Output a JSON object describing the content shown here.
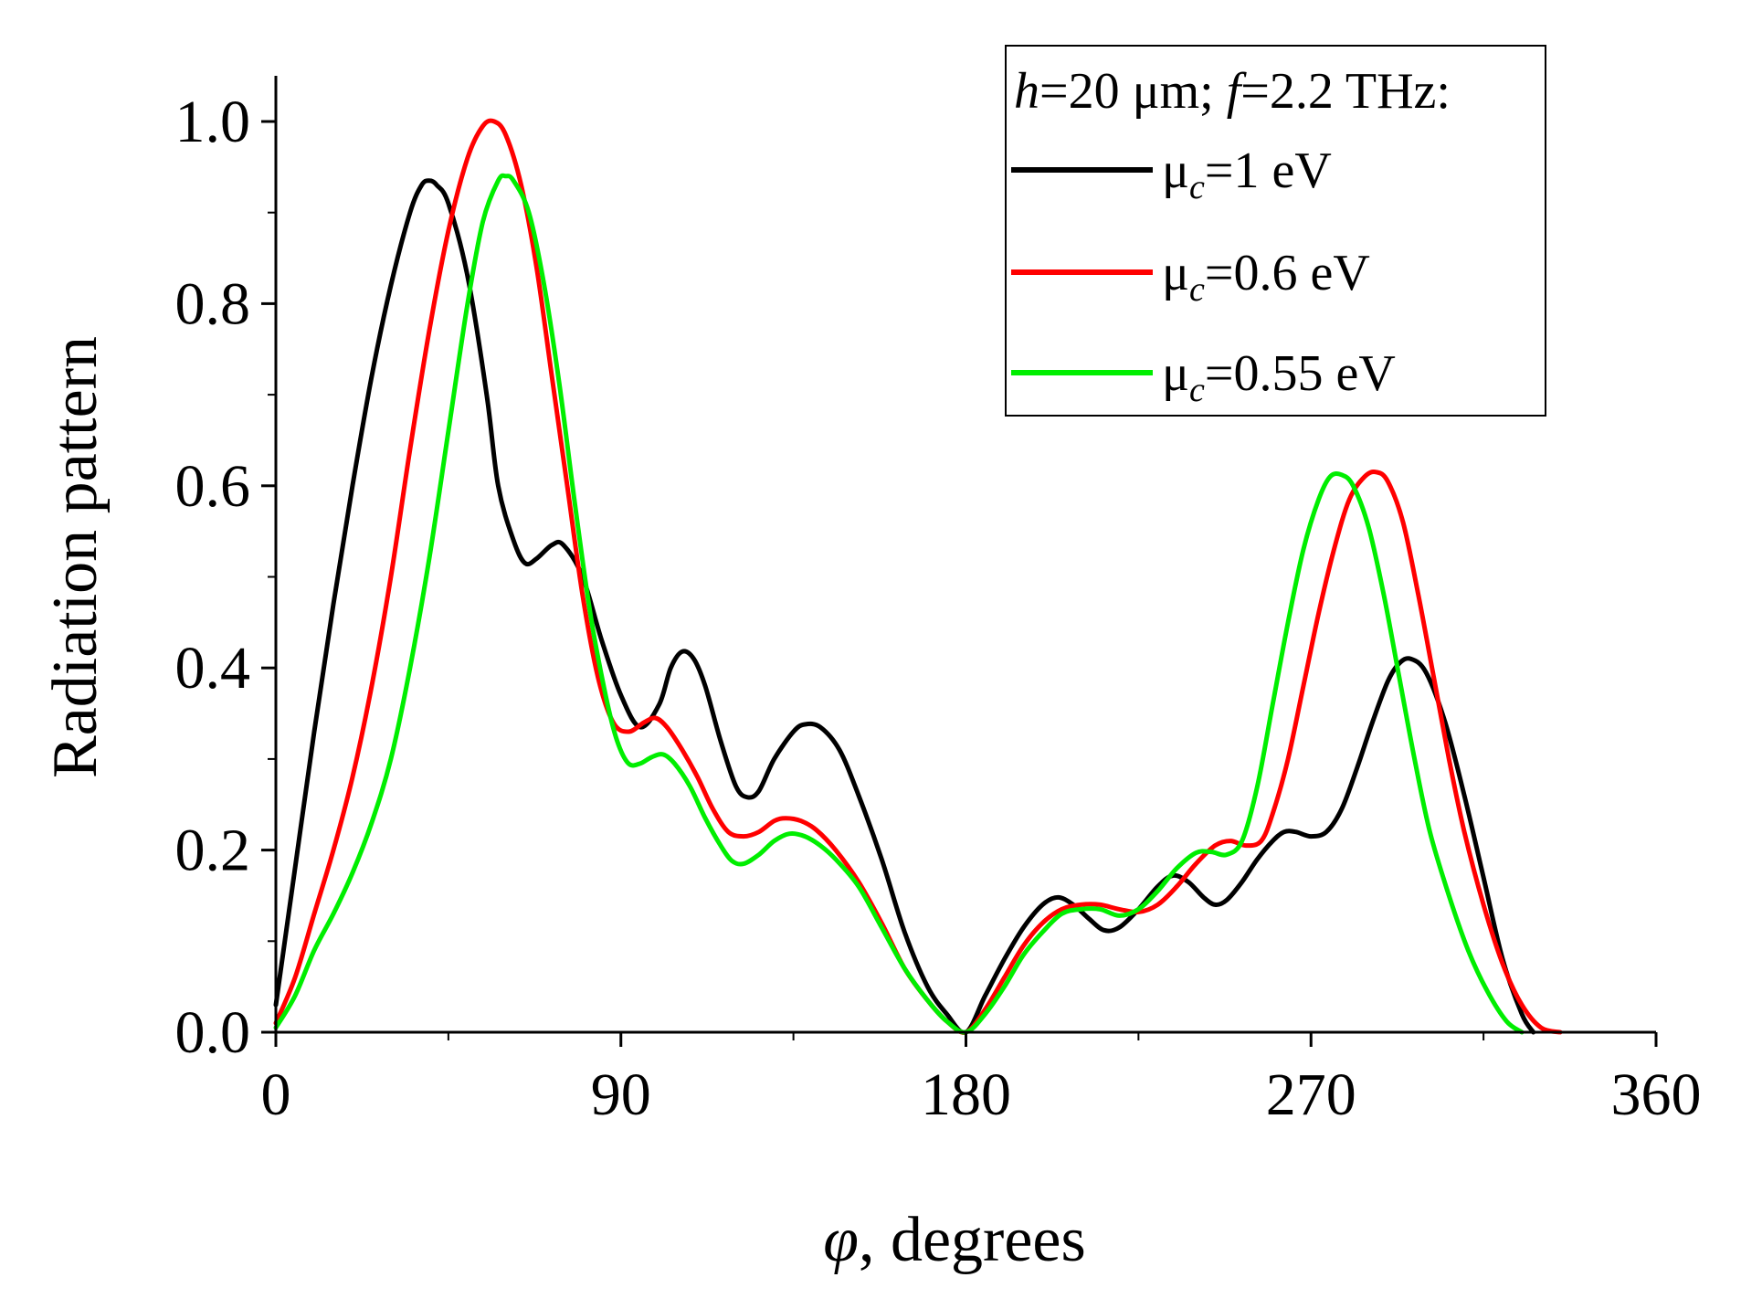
{
  "chart_data": {
    "type": "line",
    "title": "",
    "xlabel": {
      "symbol": "φ",
      "text": ", degrees"
    },
    "ylabel": "Radiation pattern",
    "xlim": [
      0,
      360
    ],
    "ylim": [
      0,
      1.0
    ],
    "xticks": [
      0,
      90,
      180,
      270,
      360
    ],
    "xtick_labels": [
      "0",
      "90",
      "180",
      "270",
      "360"
    ],
    "yticks": [
      0,
      0.2,
      0.4,
      0.6,
      0.8,
      1.0
    ],
    "ytick_labels": [
      "0.0",
      "0.2",
      "0.4",
      "0.6",
      "0.8",
      "1.0"
    ],
    "grid": false,
    "legend": {
      "placement": "top-right",
      "title": {
        "h_sym": "h",
        "h_val": "=20 μm; ",
        "f_sym": "f",
        "f_val": "=2.2 THz:"
      },
      "entry_prefix": "μ",
      "entry_sub": "c"
    },
    "series": [
      {
        "name": "μc=1 eV",
        "value_label": "=1 eV",
        "color": "#000000",
        "points": [
          [
            0,
            0.03
          ],
          [
            5,
            0.18
          ],
          [
            10,
            0.33
          ],
          [
            15,
            0.47
          ],
          [
            20,
            0.6
          ],
          [
            25,
            0.72
          ],
          [
            30,
            0.82
          ],
          [
            35,
            0.9
          ],
          [
            38,
            0.93
          ],
          [
            40,
            0.935
          ],
          [
            42,
            0.93
          ],
          [
            45,
            0.91
          ],
          [
            50,
            0.83
          ],
          [
            55,
            0.7
          ],
          [
            58,
            0.6
          ],
          [
            62,
            0.54
          ],
          [
            65,
            0.515
          ],
          [
            68,
            0.52
          ],
          [
            72,
            0.535
          ],
          [
            75,
            0.535
          ],
          [
            80,
            0.5
          ],
          [
            85,
            0.43
          ],
          [
            90,
            0.37
          ],
          [
            95,
            0.335
          ],
          [
            100,
            0.36
          ],
          [
            103,
            0.4
          ],
          [
            106,
            0.418
          ],
          [
            109,
            0.41
          ],
          [
            112,
            0.38
          ],
          [
            116,
            0.32
          ],
          [
            120,
            0.27
          ],
          [
            123,
            0.258
          ],
          [
            126,
            0.265
          ],
          [
            130,
            0.3
          ],
          [
            135,
            0.33
          ],
          [
            138,
            0.338
          ],
          [
            142,
            0.335
          ],
          [
            147,
            0.31
          ],
          [
            152,
            0.26
          ],
          [
            158,
            0.19
          ],
          [
            164,
            0.11
          ],
          [
            170,
            0.05
          ],
          [
            175,
            0.02
          ],
          [
            180,
            0.0
          ],
          [
            185,
            0.04
          ],
          [
            190,
            0.08
          ],
          [
            195,
            0.115
          ],
          [
            200,
            0.14
          ],
          [
            204,
            0.148
          ],
          [
            208,
            0.14
          ],
          [
            212,
            0.125
          ],
          [
            216,
            0.112
          ],
          [
            220,
            0.115
          ],
          [
            225,
            0.135
          ],
          [
            230,
            0.16
          ],
          [
            234,
            0.172
          ],
          [
            238,
            0.165
          ],
          [
            242,
            0.148
          ],
          [
            245,
            0.14
          ],
          [
            248,
            0.145
          ],
          [
            252,
            0.165
          ],
          [
            256,
            0.19
          ],
          [
            260,
            0.21
          ],
          [
            263,
            0.22
          ],
          [
            266,
            0.22
          ],
          [
            270,
            0.215
          ],
          [
            274,
            0.22
          ],
          [
            278,
            0.245
          ],
          [
            282,
            0.29
          ],
          [
            286,
            0.34
          ],
          [
            290,
            0.385
          ],
          [
            293,
            0.405
          ],
          [
            296,
            0.41
          ],
          [
            300,
            0.395
          ],
          [
            305,
            0.34
          ],
          [
            310,
            0.26
          ],
          [
            315,
            0.17
          ],
          [
            320,
            0.08
          ],
          [
            325,
            0.02
          ],
          [
            328,
            0.0
          ]
        ]
      },
      {
        "name": "μc=0.6 eV",
        "value_label": "=0.6 eV",
        "color": "#ff0000",
        "points": [
          [
            0,
            0.01
          ],
          [
            5,
            0.06
          ],
          [
            10,
            0.13
          ],
          [
            15,
            0.2
          ],
          [
            20,
            0.28
          ],
          [
            25,
            0.38
          ],
          [
            30,
            0.5
          ],
          [
            35,
            0.64
          ],
          [
            40,
            0.77
          ],
          [
            45,
            0.88
          ],
          [
            50,
            0.96
          ],
          [
            54,
            0.995
          ],
          [
            57,
            1.0
          ],
          [
            60,
            0.985
          ],
          [
            64,
            0.93
          ],
          [
            68,
            0.84
          ],
          [
            72,
            0.72
          ],
          [
            76,
            0.6
          ],
          [
            80,
            0.48
          ],
          [
            84,
            0.39
          ],
          [
            88,
            0.34
          ],
          [
            92,
            0.33
          ],
          [
            96,
            0.34
          ],
          [
            99,
            0.345
          ],
          [
            102,
            0.335
          ],
          [
            106,
            0.31
          ],
          [
            110,
            0.28
          ],
          [
            114,
            0.245
          ],
          [
            118,
            0.22
          ],
          [
            122,
            0.215
          ],
          [
            126,
            0.22
          ],
          [
            130,
            0.232
          ],
          [
            133,
            0.235
          ],
          [
            137,
            0.232
          ],
          [
            141,
            0.222
          ],
          [
            146,
            0.2
          ],
          [
            152,
            0.165
          ],
          [
            158,
            0.12
          ],
          [
            164,
            0.07
          ],
          [
            170,
            0.035
          ],
          [
            175,
            0.012
          ],
          [
            180,
            0.0
          ],
          [
            185,
            0.025
          ],
          [
            190,
            0.06
          ],
          [
            195,
            0.095
          ],
          [
            200,
            0.12
          ],
          [
            205,
            0.135
          ],
          [
            210,
            0.14
          ],
          [
            215,
            0.14
          ],
          [
            220,
            0.135
          ],
          [
            225,
            0.132
          ],
          [
            230,
            0.14
          ],
          [
            235,
            0.16
          ],
          [
            240,
            0.185
          ],
          [
            245,
            0.205
          ],
          [
            249,
            0.21
          ],
          [
            253,
            0.205
          ],
          [
            257,
            0.21
          ],
          [
            260,
            0.24
          ],
          [
            264,
            0.3
          ],
          [
            268,
            0.38
          ],
          [
            272,
            0.46
          ],
          [
            276,
            0.53
          ],
          [
            280,
            0.585
          ],
          [
            284,
            0.61
          ],
          [
            287,
            0.615
          ],
          [
            290,
            0.605
          ],
          [
            294,
            0.56
          ],
          [
            298,
            0.48
          ],
          [
            302,
            0.39
          ],
          [
            306,
            0.3
          ],
          [
            310,
            0.22
          ],
          [
            315,
            0.14
          ],
          [
            320,
            0.075
          ],
          [
            325,
            0.03
          ],
          [
            330,
            0.005
          ],
          [
            335,
            0.0
          ]
        ]
      },
      {
        "name": "μc=0.55 eV",
        "value_label": "=0.55 eV",
        "color": "#00ee00",
        "points": [
          [
            0,
            0.005
          ],
          [
            5,
            0.04
          ],
          [
            10,
            0.09
          ],
          [
            15,
            0.13
          ],
          [
            20,
            0.175
          ],
          [
            25,
            0.23
          ],
          [
            30,
            0.3
          ],
          [
            35,
            0.4
          ],
          [
            40,
            0.52
          ],
          [
            45,
            0.66
          ],
          [
            50,
            0.8
          ],
          [
            54,
            0.89
          ],
          [
            58,
            0.935
          ],
          [
            60,
            0.94
          ],
          [
            62,
            0.935
          ],
          [
            66,
            0.9
          ],
          [
            70,
            0.82
          ],
          [
            74,
            0.71
          ],
          [
            78,
            0.58
          ],
          [
            82,
            0.46
          ],
          [
            86,
            0.37
          ],
          [
            89,
            0.32
          ],
          [
            92,
            0.295
          ],
          [
            95,
            0.295
          ],
          [
            98,
            0.302
          ],
          [
            101,
            0.305
          ],
          [
            104,
            0.295
          ],
          [
            108,
            0.27
          ],
          [
            112,
            0.235
          ],
          [
            116,
            0.205
          ],
          [
            119,
            0.188
          ],
          [
            122,
            0.185
          ],
          [
            126,
            0.195
          ],
          [
            130,
            0.21
          ],
          [
            134,
            0.218
          ],
          [
            138,
            0.215
          ],
          [
            142,
            0.205
          ],
          [
            146,
            0.19
          ],
          [
            152,
            0.16
          ],
          [
            158,
            0.115
          ],
          [
            164,
            0.07
          ],
          [
            170,
            0.035
          ],
          [
            175,
            0.012
          ],
          [
            180,
            0.0
          ],
          [
            185,
            0.02
          ],
          [
            190,
            0.05
          ],
          [
            195,
            0.085
          ],
          [
            200,
            0.11
          ],
          [
            205,
            0.13
          ],
          [
            210,
            0.135
          ],
          [
            215,
            0.135
          ],
          [
            220,
            0.128
          ],
          [
            225,
            0.135
          ],
          [
            230,
            0.155
          ],
          [
            235,
            0.18
          ],
          [
            240,
            0.197
          ],
          [
            244,
            0.198
          ],
          [
            248,
            0.195
          ],
          [
            252,
            0.21
          ],
          [
            256,
            0.27
          ],
          [
            260,
            0.36
          ],
          [
            264,
            0.45
          ],
          [
            268,
            0.53
          ],
          [
            272,
            0.585
          ],
          [
            275,
            0.61
          ],
          [
            278,
            0.612
          ],
          [
            281,
            0.6
          ],
          [
            285,
            0.555
          ],
          [
            289,
            0.48
          ],
          [
            293,
            0.39
          ],
          [
            297,
            0.3
          ],
          [
            301,
            0.22
          ],
          [
            306,
            0.15
          ],
          [
            311,
            0.09
          ],
          [
            316,
            0.045
          ],
          [
            321,
            0.012
          ],
          [
            325,
            0.0
          ]
        ]
      }
    ]
  }
}
